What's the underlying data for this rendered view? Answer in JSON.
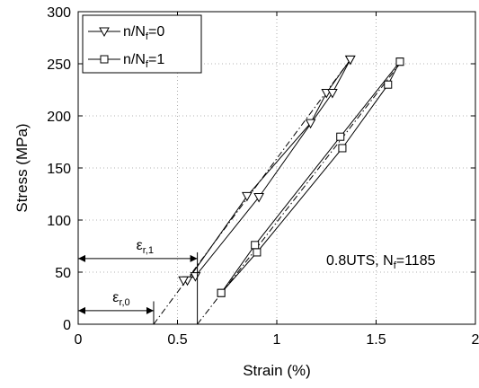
{
  "chart_data": {
    "type": "line",
    "xlabel": "Strain (%)",
    "ylabel": "Stress (MPa)",
    "xlim": [
      0,
      2
    ],
    "ylim": [
      0,
      300
    ],
    "xticks": [
      "0",
      "0.5",
      "1",
      "1.5",
      "2"
    ],
    "yticks": [
      "0",
      "50",
      "100",
      "150",
      "200",
      "250",
      "300"
    ],
    "grid": true,
    "legend_position": "top-left",
    "legend": [
      {
        "prefix": "n/N",
        "sub": "f",
        "suffix": "=0",
        "marker": "triangle-down"
      },
      {
        "prefix": "n/N",
        "sub": "f",
        "suffix": "=1",
        "marker": "square"
      }
    ],
    "annotation": {
      "prefix": "0.8UTS, N",
      "sub": "f",
      "suffix": "=1185"
    },
    "eps_r0": {
      "sym": "ε",
      "sub": "r,0",
      "value": 0.38
    },
    "eps_r1": {
      "sym": "ε",
      "sub": "r,1",
      "value": 0.6
    },
    "series": [
      {
        "marker": "triangle-down",
        "loading": [
          [
            0.55,
            42
          ],
          [
            0.85,
            123
          ],
          [
            1.17,
            193
          ],
          [
            1.25,
            222
          ],
          [
            1.37,
            254
          ]
        ],
        "unloading": [
          [
            1.37,
            254
          ],
          [
            1.28,
            222
          ],
          [
            0.91,
            122
          ],
          [
            0.59,
            46
          ],
          [
            0.53,
            42
          ]
        ],
        "fit_line": [
          [
            0.38,
            0
          ],
          [
            1.37,
            254
          ]
        ]
      },
      {
        "marker": "square",
        "loading": [
          [
            0.72,
            30
          ],
          [
            0.89,
            76
          ],
          [
            1.32,
            180
          ],
          [
            1.62,
            252
          ]
        ],
        "unloading": [
          [
            1.62,
            252
          ],
          [
            1.56,
            230
          ],
          [
            1.33,
            169
          ],
          [
            0.9,
            69
          ],
          [
            0.72,
            30
          ]
        ],
        "fit_line": [
          [
            0.6,
            0
          ],
          [
            1.62,
            250
          ]
        ]
      }
    ]
  }
}
